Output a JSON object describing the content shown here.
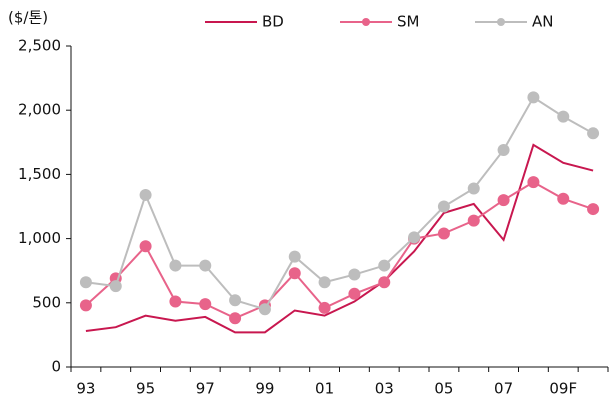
{
  "chart_data": {
    "type": "line",
    "y_label": "($/톤)",
    "categories": [
      "93",
      null,
      "95",
      null,
      "97",
      null,
      "99",
      null,
      "01",
      null,
      "03",
      null,
      "05",
      null,
      "07",
      null,
      "09F",
      null
    ],
    "series": [
      {
        "name": "BD",
        "color": "#c8174f",
        "marker": false,
        "values": [
          280,
          310,
          400,
          360,
          390,
          270,
          270,
          440,
          400,
          510,
          670,
          900,
          1200,
          1270,
          990,
          1730,
          1590,
          1530
        ]
      },
      {
        "name": "SM",
        "color": "#e8638a",
        "marker": true,
        "values": [
          480,
          690,
          940,
          510,
          490,
          380,
          480,
          730,
          460,
          570,
          660,
          1000,
          1040,
          1140,
          1300,
          1440,
          1310,
          1230
        ]
      },
      {
        "name": "AN",
        "color": "#bdbdbd",
        "marker": true,
        "values": [
          660,
          630,
          1340,
          790,
          790,
          520,
          450,
          860,
          660,
          720,
          790,
          1010,
          1250,
          1390,
          1690,
          2100,
          1950,
          1820
        ]
      }
    ],
    "ylim": [
      0,
      2500
    ],
    "yticks": [
      0,
      500,
      {
        "value": 1000,
        "label": "1,000"
      },
      {
        "value": 1500,
        "label": "1,500"
      },
      {
        "value": 2000,
        "label": "2,000"
      },
      {
        "value": 2500,
        "label": "2,500"
      }
    ],
    "grid": false
  }
}
